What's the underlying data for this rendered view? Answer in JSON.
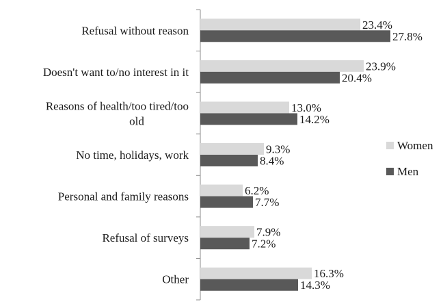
{
  "chart_data": {
    "type": "bar",
    "orientation": "horizontal",
    "categories": [
      [
        "Refusal without reason"
      ],
      [
        "Doesn't want to/no interest in it"
      ],
      [
        "Reasons of health/too tired/too",
        "old"
      ],
      [
        "No time, holidays, work"
      ],
      [
        "Personal and family reasons"
      ],
      [
        "Refusal of surveys"
      ],
      [
        "Other"
      ]
    ],
    "series": [
      {
        "name": "Women",
        "color": "#d9d9d9",
        "values": [
          23.4,
          23.9,
          13.0,
          9.3,
          6.2,
          7.9,
          16.3
        ],
        "labels": [
          "23.4%",
          "23.9%",
          "13.0%",
          "9.3%",
          "6.2%",
          "7.9%",
          "16.3%"
        ]
      },
      {
        "name": "Men",
        "color": "#595959",
        "values": [
          27.8,
          20.4,
          14.2,
          8.4,
          7.7,
          7.2,
          14.3
        ],
        "labels": [
          "27.8%",
          "20.4%",
          "14.2%",
          "8.4%",
          "7.7%",
          "7.2%",
          "14.3%"
        ]
      }
    ],
    "xlim": [
      0,
      30
    ],
    "unit": "%",
    "grid": false,
    "legend_position": "right"
  }
}
